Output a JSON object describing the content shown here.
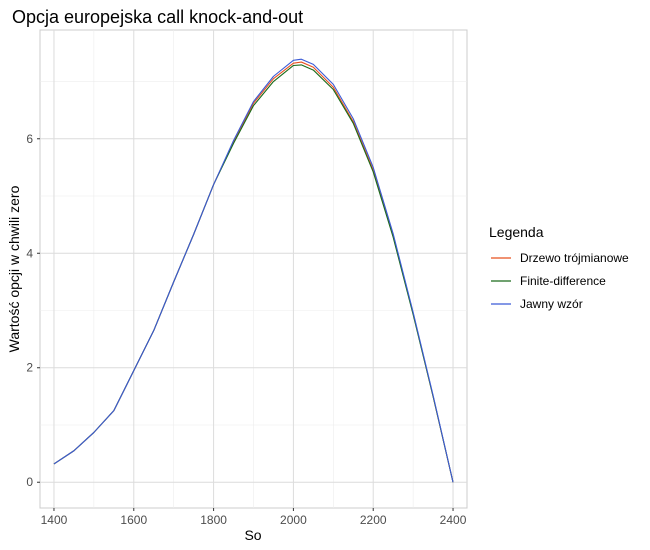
{
  "chart_data": {
    "type": "line",
    "title": "Opcja europejska call knock-and-out",
    "xlabel": "So",
    "ylabel": "Wartość opcji w chwili zero",
    "xlim": [
      1365,
      2435
    ],
    "ylim": [
      -0.45,
      7.9
    ],
    "x_ticks": [
      1400,
      1600,
      1800,
      2000,
      2200,
      2400
    ],
    "y_ticks": [
      0,
      2,
      4,
      6
    ],
    "grid": true,
    "legend": {
      "title": "Legenda",
      "position": "right"
    },
    "x": [
      1400,
      1450,
      1500,
      1550,
      1600,
      1650,
      1700,
      1750,
      1800,
      1850,
      1900,
      1950,
      2000,
      2020,
      2050,
      2100,
      2150,
      2200,
      2250,
      2300,
      2350,
      2400
    ],
    "series": [
      {
        "name": "Drzewo trójmianowe",
        "color": "#E8501F",
        "values": [
          0.32,
          0.55,
          0.87,
          1.25,
          1.95,
          2.65,
          3.5,
          4.33,
          5.2,
          5.95,
          6.62,
          7.05,
          7.32,
          7.34,
          7.25,
          6.9,
          6.3,
          5.45,
          4.3,
          2.95,
          1.5,
          0.0
        ]
      },
      {
        "name": "Finite-difference",
        "color": "#1A6B1A",
        "values": [
          0.32,
          0.55,
          0.87,
          1.25,
          1.95,
          2.65,
          3.5,
          4.33,
          5.2,
          5.92,
          6.58,
          7.0,
          7.28,
          7.29,
          7.2,
          6.86,
          6.27,
          5.42,
          4.28,
          2.93,
          1.5,
          0.0
        ]
      },
      {
        "name": "Jawny wzór",
        "color": "#3B5BD6",
        "values": [
          0.32,
          0.55,
          0.87,
          1.25,
          1.95,
          2.65,
          3.5,
          4.33,
          5.2,
          5.97,
          6.65,
          7.09,
          7.37,
          7.39,
          7.3,
          6.95,
          6.35,
          5.5,
          4.34,
          2.97,
          1.52,
          0.0
        ]
      }
    ]
  }
}
